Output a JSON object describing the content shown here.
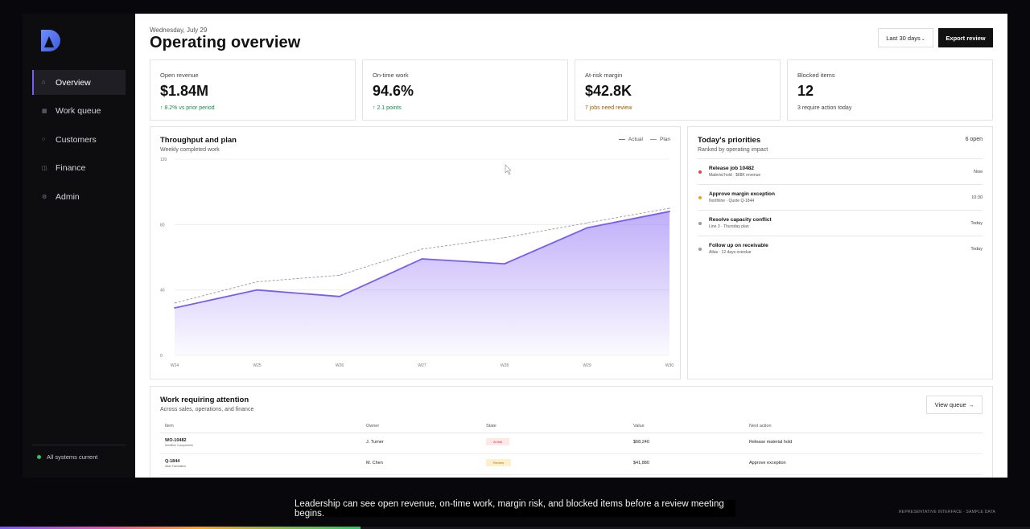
{
  "sidebar": {
    "logo_icon": "brand-d-logo",
    "items": [
      {
        "label": "Overview",
        "icon": "home-icon",
        "active": true
      },
      {
        "label": "Work queue",
        "icon": "grid-icon",
        "active": false
      },
      {
        "label": "Customers",
        "icon": "circle-icon",
        "active": false
      },
      {
        "label": "Finance",
        "icon": "ledger-icon",
        "active": false
      },
      {
        "label": "Admin",
        "icon": "gear-icon",
        "active": false
      }
    ],
    "status": "All systems current"
  },
  "header": {
    "date": "Wednesday, July 29",
    "title": "Operating overview",
    "range_label": "Last 30 days",
    "export_label": "Export review"
  },
  "kpis": [
    {
      "label": "Open revenue",
      "value": "$1.84M",
      "note": "↑ 8.2% vs prior period",
      "tone": "green"
    },
    {
      "label": "On-time work",
      "value": "94.6%",
      "note": "↑ 2.1 points",
      "tone": "green"
    },
    {
      "label": "At-risk margin",
      "value": "$42.8K",
      "note": "7 jobs need review",
      "tone": "amber"
    },
    {
      "label": "Blocked items",
      "value": "12",
      "note": "3 require action today",
      "tone": "neutral"
    }
  ],
  "throughput": {
    "title": "Throughput and plan",
    "subtitle": "Weekly completed work",
    "legend_actual": "Actual",
    "legend_plan": "Plan"
  },
  "chart_data": {
    "type": "line",
    "categories": [
      "W24",
      "W25",
      "W26",
      "W27",
      "W28",
      "W29",
      "W30"
    ],
    "series": [
      {
        "name": "Actual",
        "values": [
          29,
          40,
          36,
          59,
          56,
          78,
          88
        ],
        "color": "#7b5cf0"
      },
      {
        "name": "Plan",
        "values": [
          32,
          45,
          49,
          65,
          72,
          81,
          90
        ],
        "color": "#9a9aa4"
      }
    ],
    "yticks": [
      "0",
      "40",
      "80",
      "120"
    ],
    "ylim": [
      0,
      120
    ],
    "grid": true,
    "legend": "top-right"
  },
  "priorities": {
    "title": "Today's priorities",
    "subtitle": "Ranked by operating impact",
    "count": "6 open",
    "items": [
      {
        "title": "Release job 10482",
        "sub": "Material hold · $68K revenue",
        "time": "Now",
        "color": "#e04848"
      },
      {
        "title": "Approve margin exception",
        "sub": "Northline · Quote Q-1844",
        "time": "10:30",
        "color": "#f0a020"
      },
      {
        "title": "Resolve capacity conflict",
        "sub": "Line 3 · Thursday plan",
        "time": "Today",
        "color": "#9a9aa4"
      },
      {
        "title": "Follow up on receivable",
        "sub": "Atlas · 12 days overdue",
        "time": "Today",
        "color": "#9a9aa4"
      }
    ]
  },
  "work": {
    "title": "Work requiring attention",
    "subtitle": "Across sales, operations, and finance",
    "view_label": "View queue →",
    "columns": [
      "Item",
      "Owner",
      "State",
      "Value",
      "Next action"
    ],
    "rows": [
      {
        "id": "WO-10482",
        "sub": "Northline Components",
        "owner": "J. Turner",
        "state": "At risk",
        "state_tone": "risk",
        "value": "$68,240",
        "action": "Release material hold"
      },
      {
        "id": "Q-1844",
        "sub": "Atlas Fabrication",
        "owner": "M. Chen",
        "state": "Review",
        "state_tone": "review",
        "value": "$41,880",
        "action": "Approve exception"
      }
    ]
  },
  "caption": "Leadership can see open revenue, on-time work, margin risk, and blocked items before a review meeting begins.",
  "footer_note": "REPRESENTATIVE INTERFACE · SAMPLE DATA",
  "playback_progress": 0.35
}
